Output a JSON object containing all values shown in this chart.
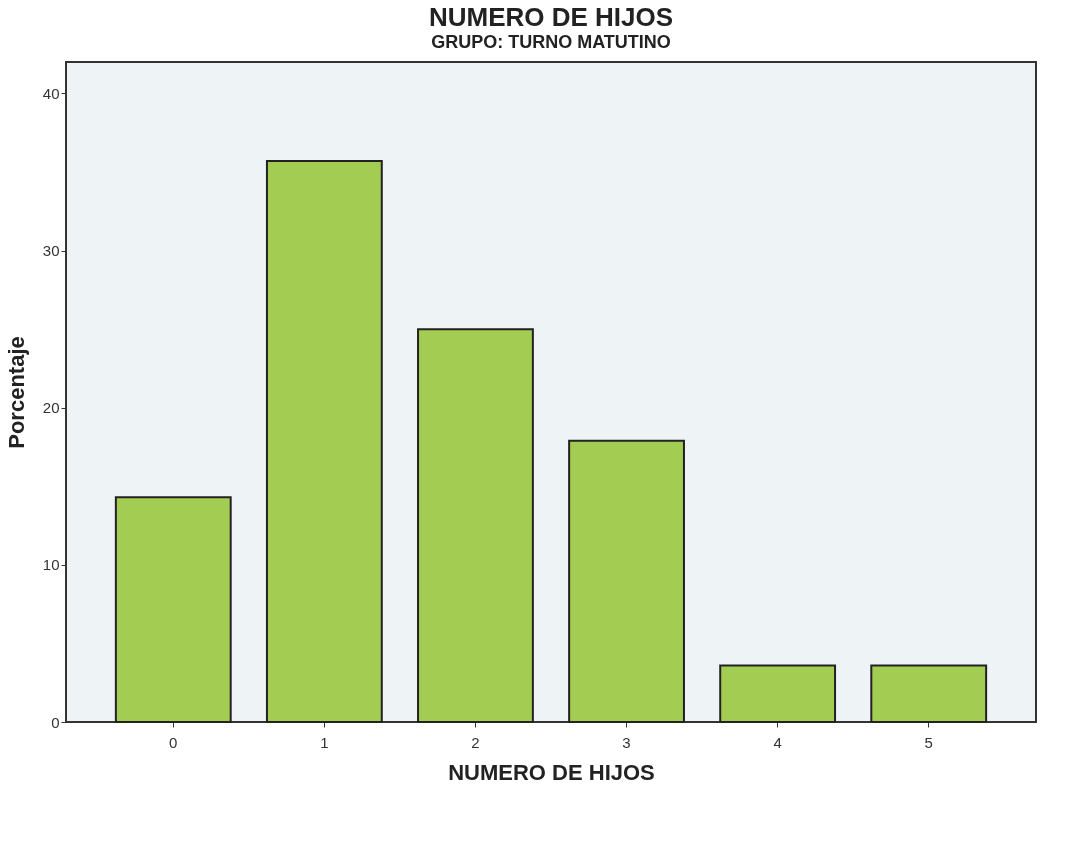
{
  "chart_data": {
    "type": "bar",
    "title": "NUMERO DE HIJOS",
    "subtitle": "GRUPO: TURNO MATUTINO",
    "xlabel": "NUMERO DE HIJOS",
    "ylabel": "Porcentaje",
    "categories": [
      "0",
      "1",
      "2",
      "3",
      "4",
      "5"
    ],
    "values": [
      14.3,
      35.7,
      25.0,
      17.9,
      3.6,
      3.6
    ],
    "color": "#a3cc52",
    "ylim": [
      0,
      42
    ],
    "yticks": [
      0,
      10,
      20,
      30,
      40
    ],
    "grid": false
  }
}
